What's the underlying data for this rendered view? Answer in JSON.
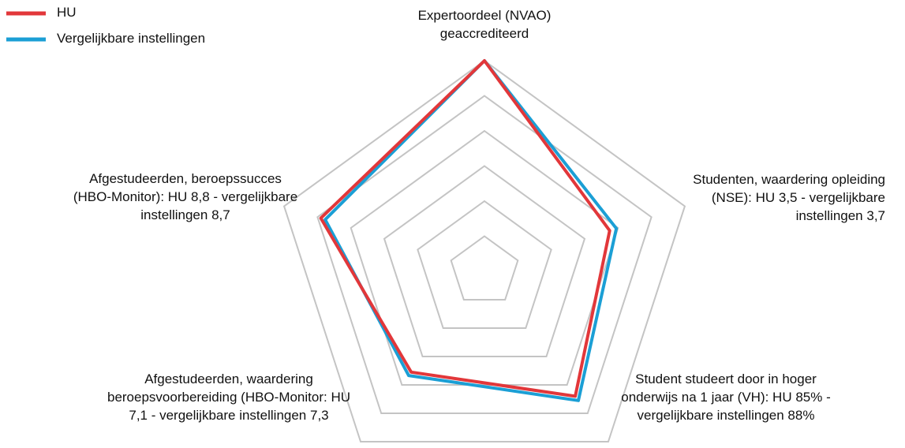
{
  "chart_data": {
    "type": "radar",
    "categories": [
      "Expertoordeel (NVAO) geaccrediteerd",
      "Studenten, waardering opleiding (NSE): HU 3,5 - vergelijkbare instellingen 3,7",
      "Student studeert door in hoger onderwijs na 1 jaar (VH): HU 85% - vergelijkbare instellingen 88%",
      "Afgestudeerden, waardering beroepsvoorbereiding (HBO-Monitor: HU 7,1 - vergelijkbare instellingen 7,3",
      "Afgestudeerden, beroepssucces (HBO-Monitor): HU 8,8 - vergelijkbare instellingen 8,7"
    ],
    "series": [
      {
        "name": "HU",
        "color": "#e2373a",
        "values": [
          6,
          3.75,
          4.4,
          3.55,
          4.9
        ]
      },
      {
        "name": "Vergelijkbare instellingen",
        "color": "#1b9fd5",
        "values": [
          6,
          3.95,
          4.55,
          3.67,
          4.77
        ]
      }
    ],
    "rlim": [
      0,
      6
    ],
    "rticks": [
      1,
      2,
      3,
      4,
      5,
      6
    ],
    "grid": true,
    "legend": "top-left"
  }
}
